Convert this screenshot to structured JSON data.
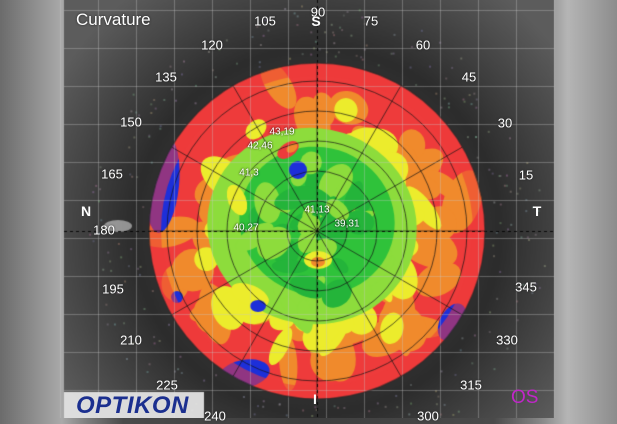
{
  "title": "Curvature",
  "eye": "OS",
  "brand": "OPTIKON",
  "cardinals": {
    "superior": "S",
    "inferior": "I",
    "nasal": "N",
    "temporal": "T"
  },
  "angle_labels": [
    "90",
    "75",
    "60",
    "45",
    "30",
    "15",
    "345",
    "330",
    "315",
    "300",
    "240",
    "225",
    "210",
    "195",
    "180",
    "165",
    "150",
    "135",
    "120",
    "105"
  ],
  "readings": [
    "43,19",
    "42,46",
    "41,3",
    "41,13",
    "39,31",
    "40,27"
  ],
  "colors": {
    "red": "#ee3b3b",
    "orange": "#f08a2c",
    "yellow": "#ecec2c",
    "light_green": "#8ddc3c",
    "green": "#2fc23a",
    "blue": "#1d2fd9",
    "logo": "#1b2f8f",
    "eye_label": "#c026c8"
  }
}
